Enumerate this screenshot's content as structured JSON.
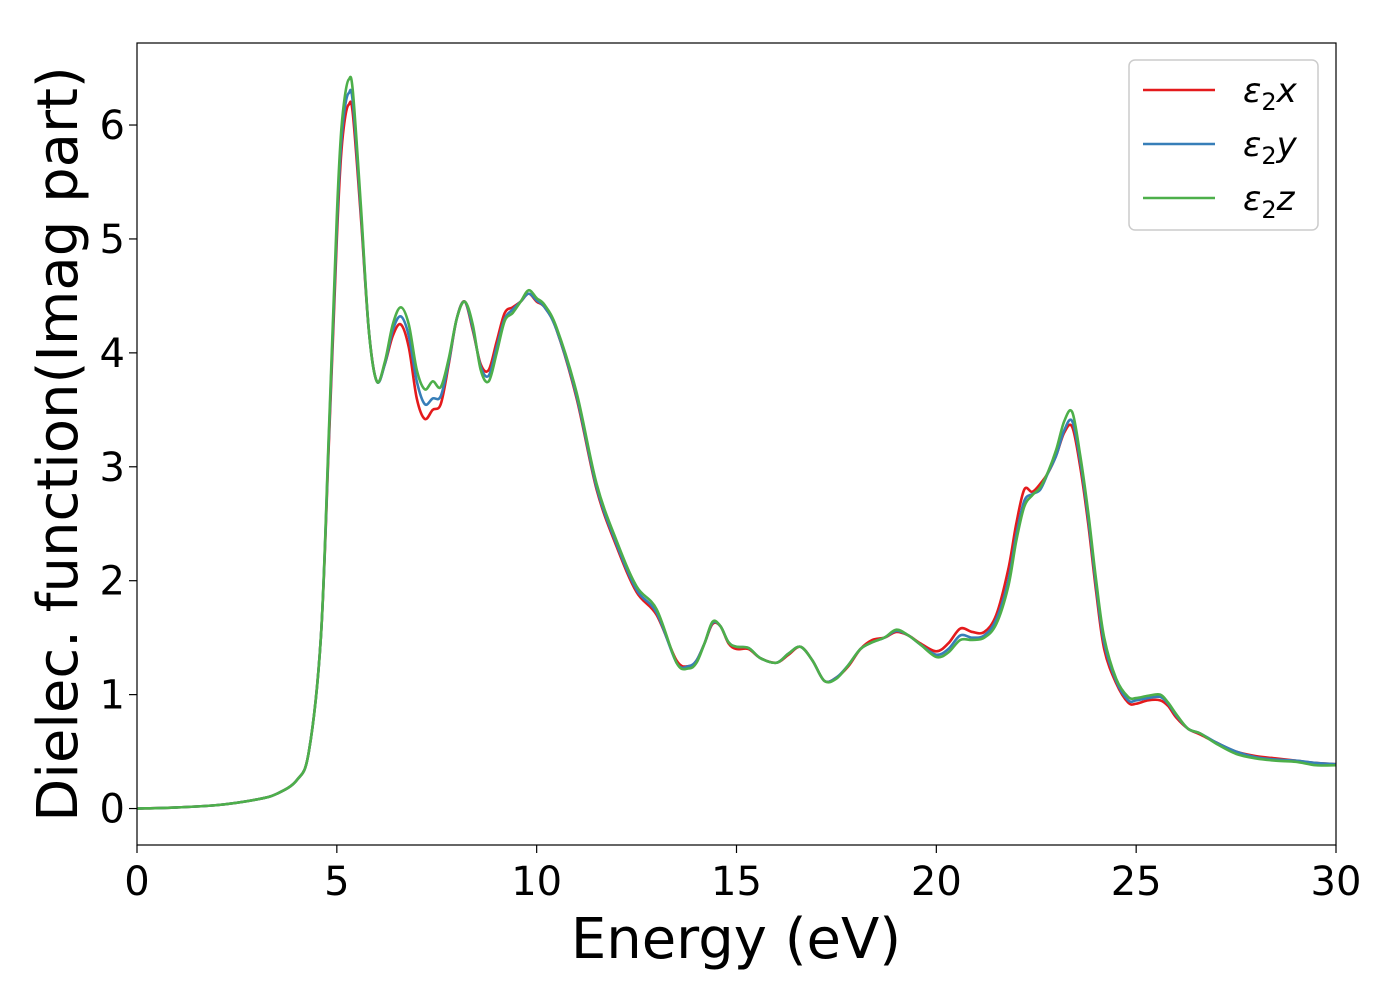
{
  "chart_data": {
    "type": "line",
    "title": "",
    "xlabel": "Energy (eV)",
    "ylabel": "Dielec. function(Imag part)",
    "xlim": [
      0,
      30
    ],
    "ylim": [
      -0.32,
      6.72
    ],
    "xticks": [
      0,
      5,
      10,
      15,
      20,
      25,
      30
    ],
    "yticks": [
      0,
      1,
      2,
      3,
      4,
      5,
      6
    ],
    "grid": false,
    "legend_position": "top-right",
    "series": [
      {
        "name": "x",
        "legend_base": "ε",
        "legend_sub": "2",
        "legend_var": "x",
        "color": "#e41a1c",
        "x": [
          0,
          1,
          2,
          3,
          3.5,
          4,
          4.3,
          4.6,
          4.8,
          5.0,
          5.1,
          5.2,
          5.3,
          5.4,
          5.6,
          5.8,
          6.0,
          6.2,
          6.4,
          6.6,
          6.8,
          7.0,
          7.2,
          7.4,
          7.6,
          7.8,
          8.0,
          8.2,
          8.4,
          8.6,
          8.8,
          9.0,
          9.2,
          9.4,
          9.6,
          9.8,
          10.0,
          10.2,
          10.5,
          11.0,
          11.5,
          12.0,
          12.5,
          13.0,
          13.5,
          13.8,
          14.0,
          14.2,
          14.4,
          14.6,
          14.8,
          15.0,
          15.3,
          15.6,
          16.0,
          16.3,
          16.6,
          16.9,
          17.2,
          17.5,
          17.8,
          18.1,
          18.4,
          18.7,
          19.0,
          19.3,
          19.6,
          20.0,
          20.3,
          20.6,
          20.9,
          21.2,
          21.5,
          21.8,
          22.0,
          22.2,
          22.4,
          22.6,
          22.8,
          23.0,
          23.2,
          23.4,
          23.6,
          23.8,
          24.0,
          24.2,
          24.5,
          24.8,
          25.0,
          25.3,
          25.6,
          25.8,
          26.0,
          26.3,
          26.6,
          27.0,
          27.5,
          28.0,
          28.5,
          29.0,
          29.5,
          30.0
        ],
        "values": [
          0,
          0.01,
          0.03,
          0.08,
          0.13,
          0.25,
          0.5,
          1.5,
          3.2,
          5.0,
          5.7,
          6.05,
          6.18,
          6.1,
          5.2,
          4.2,
          3.75,
          3.9,
          4.15,
          4.25,
          4.05,
          3.6,
          3.42,
          3.5,
          3.55,
          3.9,
          4.3,
          4.45,
          4.2,
          3.9,
          3.85,
          4.1,
          4.35,
          4.4,
          4.45,
          4.52,
          4.45,
          4.4,
          4.2,
          3.6,
          2.8,
          2.3,
          1.9,
          1.7,
          1.3,
          1.25,
          1.3,
          1.45,
          1.62,
          1.6,
          1.45,
          1.4,
          1.4,
          1.32,
          1.28,
          1.35,
          1.42,
          1.3,
          1.12,
          1.15,
          1.25,
          1.4,
          1.48,
          1.5,
          1.55,
          1.52,
          1.45,
          1.38,
          1.45,
          1.58,
          1.55,
          1.55,
          1.7,
          2.1,
          2.5,
          2.8,
          2.78,
          2.85,
          2.95,
          3.1,
          3.3,
          3.35,
          3.0,
          2.5,
          1.9,
          1.4,
          1.1,
          0.93,
          0.92,
          0.95,
          0.95,
          0.9,
          0.8,
          0.7,
          0.65,
          0.58,
          0.5,
          0.46,
          0.44,
          0.42,
          0.4,
          0.39
        ]
      },
      {
        "name": "y",
        "legend_base": "ε",
        "legend_sub": "2",
        "legend_var": "y",
        "color": "#377eb8",
        "x": [
          0,
          1,
          2,
          3,
          3.5,
          4,
          4.3,
          4.6,
          4.8,
          5.0,
          5.1,
          5.2,
          5.3,
          5.4,
          5.6,
          5.8,
          6.0,
          6.2,
          6.4,
          6.6,
          6.8,
          7.0,
          7.2,
          7.4,
          7.6,
          7.8,
          8.0,
          8.2,
          8.4,
          8.6,
          8.8,
          9.0,
          9.2,
          9.4,
          9.6,
          9.8,
          10.0,
          10.2,
          10.5,
          11.0,
          11.5,
          12.0,
          12.5,
          13.0,
          13.5,
          13.8,
          14.0,
          14.2,
          14.4,
          14.6,
          14.8,
          15.0,
          15.3,
          15.6,
          16.0,
          16.3,
          16.6,
          16.9,
          17.2,
          17.5,
          17.8,
          18.1,
          18.4,
          18.7,
          19.0,
          19.3,
          19.6,
          20.0,
          20.3,
          20.6,
          20.9,
          21.2,
          21.5,
          21.8,
          22.0,
          22.2,
          22.4,
          22.6,
          22.8,
          23.0,
          23.2,
          23.4,
          23.6,
          23.8,
          24.0,
          24.2,
          24.5,
          24.8,
          25.0,
          25.3,
          25.6,
          25.8,
          26.0,
          26.3,
          26.6,
          27.0,
          27.5,
          28.0,
          28.5,
          29.0,
          29.5,
          30.0
        ],
        "values": [
          0,
          0.01,
          0.03,
          0.08,
          0.13,
          0.25,
          0.5,
          1.5,
          3.25,
          5.1,
          5.8,
          6.15,
          6.28,
          6.2,
          5.25,
          4.2,
          3.75,
          3.9,
          4.2,
          4.32,
          4.15,
          3.75,
          3.55,
          3.6,
          3.62,
          3.92,
          4.3,
          4.45,
          4.22,
          3.88,
          3.8,
          4.05,
          4.3,
          4.38,
          4.45,
          4.52,
          4.46,
          4.4,
          4.2,
          3.62,
          2.82,
          2.32,
          1.92,
          1.72,
          1.28,
          1.25,
          1.3,
          1.45,
          1.63,
          1.6,
          1.46,
          1.42,
          1.41,
          1.32,
          1.28,
          1.36,
          1.42,
          1.3,
          1.12,
          1.15,
          1.26,
          1.4,
          1.46,
          1.5,
          1.56,
          1.52,
          1.44,
          1.35,
          1.4,
          1.52,
          1.5,
          1.52,
          1.66,
          2.0,
          2.4,
          2.7,
          2.76,
          2.8,
          2.95,
          3.1,
          3.32,
          3.4,
          3.05,
          2.55,
          1.95,
          1.45,
          1.12,
          0.95,
          0.95,
          0.97,
          0.98,
          0.92,
          0.82,
          0.7,
          0.66,
          0.58,
          0.5,
          0.45,
          0.43,
          0.42,
          0.4,
          0.39
        ]
      },
      {
        "name": "z",
        "legend_base": "ε",
        "legend_sub": "2",
        "legend_var": "z",
        "color": "#4daf4a",
        "x": [
          0,
          1,
          2,
          3,
          3.5,
          4,
          4.3,
          4.6,
          4.8,
          5.0,
          5.1,
          5.2,
          5.3,
          5.4,
          5.6,
          5.8,
          6.0,
          6.2,
          6.4,
          6.6,
          6.8,
          7.0,
          7.2,
          7.4,
          7.6,
          7.8,
          8.0,
          8.2,
          8.4,
          8.6,
          8.8,
          9.0,
          9.2,
          9.4,
          9.6,
          9.8,
          10.0,
          10.2,
          10.5,
          11.0,
          11.5,
          12.0,
          12.5,
          13.0,
          13.5,
          13.8,
          14.0,
          14.2,
          14.4,
          14.6,
          14.8,
          15.0,
          15.3,
          15.6,
          16.0,
          16.3,
          16.6,
          16.9,
          17.2,
          17.5,
          17.8,
          18.1,
          18.4,
          18.7,
          19.0,
          19.3,
          19.6,
          20.0,
          20.3,
          20.6,
          20.9,
          21.2,
          21.5,
          21.8,
          22.0,
          22.2,
          22.4,
          22.6,
          22.8,
          23.0,
          23.2,
          23.4,
          23.6,
          23.8,
          24.0,
          24.2,
          24.5,
          24.8,
          25.0,
          25.3,
          25.6,
          25.8,
          26.0,
          26.3,
          26.6,
          27.0,
          27.5,
          28.0,
          28.5,
          29.0,
          29.5,
          30.0
        ],
        "values": [
          0,
          0.01,
          0.03,
          0.08,
          0.13,
          0.25,
          0.5,
          1.5,
          3.3,
          5.2,
          5.9,
          6.25,
          6.4,
          6.3,
          5.3,
          4.2,
          3.75,
          3.92,
          4.25,
          4.4,
          4.25,
          3.85,
          3.68,
          3.75,
          3.7,
          3.95,
          4.3,
          4.45,
          4.25,
          3.85,
          3.75,
          4.0,
          4.28,
          4.35,
          4.45,
          4.55,
          4.48,
          4.42,
          4.22,
          3.65,
          2.85,
          2.35,
          1.95,
          1.75,
          1.28,
          1.23,
          1.28,
          1.45,
          1.64,
          1.6,
          1.46,
          1.42,
          1.41,
          1.32,
          1.28,
          1.36,
          1.42,
          1.3,
          1.12,
          1.14,
          1.26,
          1.4,
          1.46,
          1.5,
          1.57,
          1.52,
          1.44,
          1.33,
          1.37,
          1.48,
          1.48,
          1.5,
          1.62,
          1.95,
          2.35,
          2.65,
          2.75,
          2.82,
          2.96,
          3.15,
          3.4,
          3.48,
          3.1,
          2.6,
          2.0,
          1.5,
          1.14,
          0.98,
          0.97,
          0.99,
          1.0,
          0.93,
          0.83,
          0.7,
          0.66,
          0.57,
          0.48,
          0.44,
          0.42,
          0.41,
          0.38,
          0.38
        ]
      }
    ]
  }
}
